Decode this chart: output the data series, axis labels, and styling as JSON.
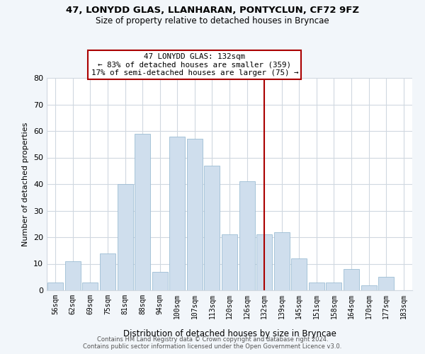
{
  "title": "47, LONYDD GLAS, LLANHARAN, PONTYCLUN, CF72 9FZ",
  "subtitle": "Size of property relative to detached houses in Bryncae",
  "xlabel": "Distribution of detached houses by size in Bryncae",
  "ylabel": "Number of detached properties",
  "categories": [
    "56sqm",
    "62sqm",
    "69sqm",
    "75sqm",
    "81sqm",
    "88sqm",
    "94sqm",
    "100sqm",
    "107sqm",
    "113sqm",
    "120sqm",
    "126sqm",
    "132sqm",
    "139sqm",
    "145sqm",
    "151sqm",
    "158sqm",
    "164sqm",
    "170sqm",
    "177sqm",
    "183sqm"
  ],
  "values": [
    3,
    11,
    3,
    14,
    40,
    59,
    7,
    58,
    57,
    47,
    21,
    41,
    21,
    22,
    12,
    3,
    3,
    8,
    2,
    5,
    0
  ],
  "bar_color": "#cfdeed",
  "bar_edge_color": "#9dbdd4",
  "vline_x_index": 12,
  "vline_color": "#aa0000",
  "annotation_title": "47 LONYDD GLAS: 132sqm",
  "annotation_line1": "← 83% of detached houses are smaller (359)",
  "annotation_line2": "17% of semi-detached houses are larger (75) →",
  "annotation_box_color": "#ffffff",
  "annotation_box_edge": "#aa0000",
  "ylim": [
    0,
    80
  ],
  "yticks": [
    0,
    10,
    20,
    30,
    40,
    50,
    60,
    70,
    80
  ],
  "background_color": "#f2f6fa",
  "grid_color": "#d0d8e0",
  "footer_line1": "Contains HM Land Registry data © Crown copyright and database right 2024.",
  "footer_line2": "Contains public sector information licensed under the Open Government Licence v3.0."
}
